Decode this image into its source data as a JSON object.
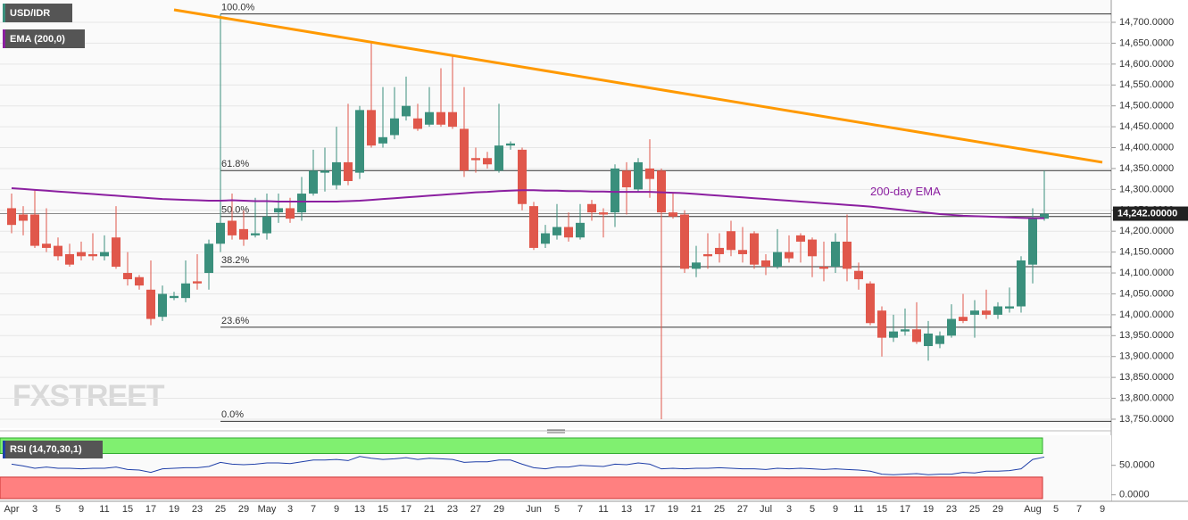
{
  "chart_data": [
    {
      "type": "candlestick",
      "symbol": "USD/IDR",
      "watermark": "FXSTREET",
      "up_color": "#3a8f7c",
      "down_color": "#e0574b",
      "grid": true,
      "categories": [
        "Apr",
        null,
        "3",
        null,
        "5",
        null,
        "9",
        null,
        "11",
        null,
        "15",
        null,
        "17",
        null,
        "19",
        null,
        "23",
        null,
        "25",
        null,
        "29",
        null,
        "May",
        null,
        "3",
        null,
        "7",
        null,
        "9",
        null,
        "13",
        null,
        "15",
        null,
        "17",
        null,
        "21",
        null,
        "23",
        null,
        "27",
        null,
        "29",
        null,
        null,
        "Jun",
        null,
        "5",
        null,
        "7",
        null,
        "11",
        null,
        "13",
        null,
        "17",
        null,
        "19",
        null,
        "21",
        null,
        "25",
        null,
        "27",
        null,
        "Jul",
        null,
        "3",
        null,
        "5",
        null,
        "9",
        null,
        "11",
        null,
        "15",
        null,
        "17",
        null,
        "19",
        null,
        "23",
        null,
        "25",
        null,
        "29",
        null,
        null,
        "Aug",
        null,
        "5",
        null,
        "7",
        null,
        "9"
      ],
      "open": [
        14255,
        14240,
        14240,
        14170,
        14165,
        14145,
        14150,
        14145,
        14140,
        14185,
        14100,
        14090,
        14060,
        13995,
        14040,
        14040,
        14080,
        14100,
        14170,
        14225,
        14205,
        14190,
        14195,
        14245,
        14255,
        14245,
        14290,
        14340,
        14310,
        14365,
        14340,
        14490,
        14410,
        14430,
        14475,
        14470,
        14455,
        14485,
        14485,
        14445,
        14375,
        14375,
        14345,
        14405,
        14395,
        14260,
        14170,
        14190,
        14210,
        14185,
        14265,
        14245,
        14245,
        14345,
        14300,
        14350,
        14345,
        14245,
        14240,
        14110,
        14145,
        14160,
        14200,
        14155,
        14195,
        14130,
        14115,
        14150,
        14190,
        14180,
        14115,
        14115,
        14175,
        14105,
        14075,
        14010,
        13945,
        13960,
        13965,
        13925,
        13930,
        13950,
        13995,
        14000,
        14010,
        14000,
        14015,
        14020,
        14120,
        14230,
        null,
        null,
        null,
        null,
        null
      ],
      "high": [
        14290,
        14260,
        14300,
        14255,
        14185,
        14170,
        14175,
        14195,
        14190,
        14260,
        14150,
        14095,
        14130,
        14070,
        14055,
        14130,
        14145,
        14180,
        14720,
        14290,
        14250,
        14280,
        14290,
        14290,
        14280,
        14330,
        14395,
        14400,
        14450,
        14505,
        14500,
        14655,
        14545,
        14545,
        14570,
        14505,
        14545,
        14590,
        14620,
        14545,
        14400,
        14390,
        14505,
        14415,
        14400,
        14270,
        14215,
        14265,
        14245,
        14265,
        14275,
        14255,
        14360,
        14365,
        14375,
        14420,
        14350,
        14290,
        14250,
        14165,
        14195,
        14195,
        14225,
        14210,
        14200,
        14145,
        14205,
        14190,
        14195,
        14185,
        14175,
        14195,
        14240,
        14125,
        14080,
        14020,
        14000,
        14015,
        14030,
        13985,
        13960,
        14025,
        14050,
        14035,
        14060,
        14030,
        14065,
        14140,
        14255,
        14345,
        null,
        null,
        null,
        null,
        null
      ],
      "low": [
        14195,
        14190,
        14160,
        14150,
        14130,
        14115,
        14130,
        14130,
        14130,
        14110,
        14070,
        14060,
        13975,
        13985,
        14035,
        14030,
        14060,
        14060,
        14150,
        14180,
        14165,
        14185,
        14180,
        14220,
        14220,
        14225,
        14285,
        14295,
        14300,
        14310,
        14325,
        14400,
        14400,
        14420,
        14465,
        14440,
        14450,
        14450,
        14445,
        14330,
        14340,
        14350,
        14340,
        14395,
        14250,
        14155,
        14160,
        14180,
        14175,
        14180,
        14225,
        14185,
        14210,
        14240,
        14295,
        14280,
        13750,
        14230,
        14100,
        14090,
        14110,
        14125,
        14140,
        14125,
        14110,
        14095,
        14110,
        14125,
        14125,
        14090,
        14080,
        14100,
        14080,
        14060,
        13975,
        13900,
        13935,
        13950,
        13930,
        13890,
        13920,
        13945,
        13980,
        13945,
        13990,
        13990,
        14005,
        14005,
        14075,
        14225,
        null,
        null,
        null,
        null,
        null
      ],
      "close": [
        14215,
        14225,
        14165,
        14160,
        14140,
        14120,
        14140,
        14140,
        14150,
        14115,
        14085,
        14070,
        13990,
        14050,
        14045,
        14075,
        14075,
        14170,
        14220,
        14190,
        14180,
        14195,
        14235,
        14255,
        14230,
        14290,
        14345,
        14345,
        14365,
        14320,
        14490,
        14405,
        14425,
        14470,
        14500,
        14445,
        14485,
        14455,
        14450,
        14345,
        14370,
        14360,
        14405,
        14410,
        14265,
        14160,
        14195,
        14210,
        14185,
        14220,
        14245,
        14240,
        14350,
        14305,
        14365,
        14325,
        14245,
        14235,
        14110,
        14125,
        14140,
        14145,
        14155,
        14145,
        14120,
        14115,
        14150,
        14135,
        14175,
        14140,
        14110,
        14175,
        14110,
        14085,
        13980,
        13945,
        13960,
        13965,
        13935,
        13955,
        13950,
        13990,
        13985,
        14010,
        14000,
        14020,
        14020,
        14130,
        14230,
        14242,
        null,
        null,
        null,
        null,
        null
      ],
      "ema": {
        "name": "EMA (200,0)",
        "color": "#8b1fa0",
        "annotation": "200-day EMA",
        "values": [
          14303,
          14301,
          14299,
          14297,
          14295,
          14293,
          14291,
          14289,
          14287,
          14285,
          14283,
          14281,
          14279,
          14277,
          14276,
          14275,
          14274,
          14273,
          14273,
          14274,
          14273,
          14272,
          14272,
          14271,
          14271,
          14271,
          14271,
          14271,
          14271,
          14272,
          14273,
          14275,
          14277,
          14279,
          14281,
          14283,
          14285,
          14287,
          14289,
          14291,
          14293,
          14294,
          14296,
          14297,
          14298,
          14298,
          14297,
          14297,
          14296,
          14296,
          14295,
          14295,
          14294,
          14294,
          14294,
          14294,
          14293,
          14292,
          14291,
          14289,
          14287,
          14285,
          14283,
          14281,
          14279,
          14277,
          14275,
          14273,
          14271,
          14269,
          14267,
          14265,
          14263,
          14261,
          14259,
          14256,
          14253,
          14250,
          14247,
          14244,
          14241,
          14239,
          14237,
          14236,
          14235,
          14234,
          14233,
          14232,
          14231,
          14231,
          null,
          null,
          null,
          null,
          null
        ]
      },
      "trendline": {
        "color": "#ff9900",
        "x": [
          14,
          94
        ],
        "values": [
          14730,
          14365
        ]
      },
      "fib_levels": [
        {
          "label": "100.0%",
          "value": 14720
        },
        {
          "label": "61.8%",
          "value": 14345
        },
        {
          "label": "50.0%",
          "value": 14235
        },
        {
          "label": "38.2%",
          "value": 14115
        },
        {
          "label": "23.6%",
          "value": 13970
        },
        {
          "label": "0.0%",
          "value": 13745
        }
      ],
      "last_price": {
        "value": 14242,
        "label": "14,242.00000"
      },
      "ylim": [
        13728.6,
        14753.4
      ],
      "yticks": [
        {
          "value": 13750,
          "label": "13,750.0000"
        },
        {
          "value": 13800,
          "label": "13,800.0000"
        },
        {
          "value": 13850,
          "label": "13,850.0000"
        },
        {
          "value": 13900,
          "label": "13,900.0000"
        },
        {
          "value": 13950,
          "label": "13,950.0000"
        },
        {
          "value": 14000,
          "label": "14,000.0000"
        },
        {
          "value": 14050,
          "label": "14,050.0000"
        },
        {
          "value": 14100,
          "label": "14,100.0000"
        },
        {
          "value": 14150,
          "label": "14,150.0000"
        },
        {
          "value": 14200,
          "label": "14,200.0000"
        },
        {
          "value": 14250,
          "label": "14,250.0000"
        },
        {
          "value": 14300,
          "label": "14,300.0000"
        },
        {
          "value": 14350,
          "label": "14,350.0000"
        },
        {
          "value": 14400,
          "label": "14,400.0000"
        },
        {
          "value": 14450,
          "label": "14,450.0000"
        },
        {
          "value": 14500,
          "label": "14,500.0000"
        },
        {
          "value": 14550,
          "label": "14,550.0000"
        },
        {
          "value": 14600,
          "label": "14,600.0000"
        },
        {
          "value": 14650,
          "label": "14,650.0000"
        },
        {
          "value": 14700,
          "label": "14,700.0000"
        }
      ]
    },
    {
      "type": "line",
      "title": "RSI (14,70,30,1)",
      "color": "#1f3fa8",
      "overbought": 70,
      "oversold": 30,
      "overbought_color": "#80f070",
      "oversold_color": "#ff8080",
      "values": [
        52,
        49,
        45,
        47,
        45,
        45,
        44,
        45,
        45,
        47,
        43,
        42,
        38,
        44,
        45,
        46,
        46,
        48,
        55,
        52,
        51,
        52,
        54,
        54,
        53,
        56,
        59,
        59,
        60,
        58,
        65,
        62,
        60,
        61,
        63,
        60,
        62,
        61,
        60,
        55,
        56,
        56,
        59,
        59,
        52,
        46,
        44,
        47,
        47,
        50,
        49,
        48,
        52,
        51,
        54,
        52,
        44,
        45,
        44,
        45,
        45,
        46,
        45,
        44,
        44,
        43,
        45,
        44,
        45,
        44,
        43,
        44,
        43,
        42,
        40,
        35,
        34,
        35,
        36,
        34,
        35,
        35,
        38,
        37,
        40,
        40,
        41,
        44,
        60,
        64
      ],
      "ylim": [
        -11,
        101
      ],
      "yticks": [
        {
          "value": 0,
          "label": "0.0000"
        },
        {
          "value": 50,
          "label": "50.0000"
        }
      ]
    }
  ]
}
